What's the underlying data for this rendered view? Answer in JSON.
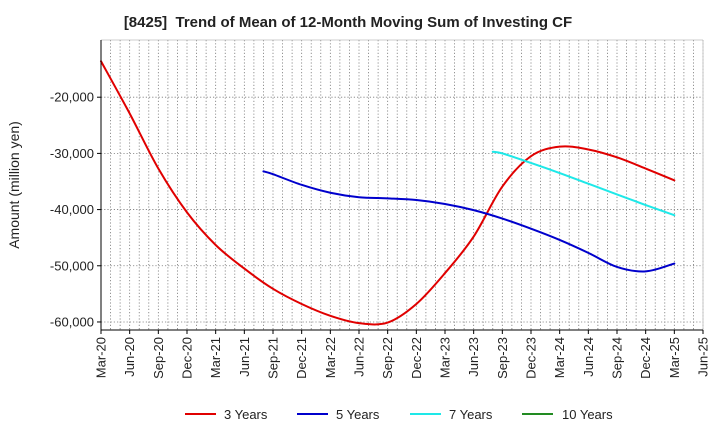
{
  "chart_data": {
    "type": "line",
    "title": "[8425]  Trend of Mean of 12-Month Moving Sum of Investing CF",
    "ylabel": "Amount (million yen)",
    "xlim": [
      "Mar-20",
      "Jun-25"
    ],
    "ylim": [
      -61430,
      -9820
    ],
    "x_ticks": [
      "Mar-20",
      "Jun-20",
      "Sep-20",
      "Dec-20",
      "Mar-21",
      "Jun-21",
      "Sep-21",
      "Dec-21",
      "Mar-22",
      "Jun-22",
      "Sep-22",
      "Dec-22",
      "Mar-23",
      "Jun-23",
      "Sep-23",
      "Dec-23",
      "Mar-24",
      "Jun-24",
      "Sep-24",
      "Dec-24",
      "Mar-25",
      "Jun-25"
    ],
    "y_ticks": [
      -20000,
      -30000,
      -40000,
      -50000,
      -60000
    ],
    "y_tick_labels": [
      "-20,000",
      "-30,000",
      "-40,000",
      "-50,000",
      "-60,000"
    ],
    "grid": true,
    "legend_position": "bottom",
    "series": [
      {
        "name": "3 Years",
        "color": "#e00000",
        "points": [
          [
            "Mar-20",
            -13600
          ],
          [
            "Jun-20",
            -22900
          ],
          [
            "Sep-20",
            -32700
          ],
          [
            "Dec-20",
            -40500
          ],
          [
            "Mar-21",
            -46300
          ],
          [
            "Jun-21",
            -50500
          ],
          [
            "Sep-21",
            -54100
          ],
          [
            "Dec-21",
            -56800
          ],
          [
            "Mar-22",
            -58900
          ],
          [
            "Jun-22",
            -60200
          ],
          [
            "Sep-22",
            -60100
          ],
          [
            "Dec-22",
            -56800
          ],
          [
            "Mar-23",
            -51300
          ],
          [
            "Jun-23",
            -44800
          ],
          [
            "Sep-23",
            -35900
          ],
          [
            "Dec-23",
            -30500
          ],
          [
            "Mar-24",
            -28800
          ],
          [
            "Jun-24",
            -29300
          ],
          [
            "Sep-24",
            -30700
          ],
          [
            "Dec-24",
            -32700
          ],
          [
            "Mar-25",
            -34800
          ]
        ]
      },
      {
        "name": "5 Years",
        "color": "#0000cc",
        "points": [
          [
            "Aug-21",
            -33200
          ],
          [
            "Sep-21",
            -33700
          ],
          [
            "Dec-21",
            -35600
          ],
          [
            "Mar-22",
            -37000
          ],
          [
            "Jun-22",
            -37800
          ],
          [
            "Sep-22",
            -38000
          ],
          [
            "Dec-22",
            -38300
          ],
          [
            "Mar-23",
            -39000
          ],
          [
            "Jun-23",
            -40100
          ],
          [
            "Sep-23",
            -41600
          ],
          [
            "Dec-23",
            -43400
          ],
          [
            "Mar-24",
            -45400
          ],
          [
            "Jun-24",
            -47700
          ],
          [
            "Sep-24",
            -50200
          ],
          [
            "Dec-24",
            -51000
          ],
          [
            "Mar-25",
            -49600
          ]
        ]
      },
      {
        "name": "7 Years",
        "color": "#1ee8e8",
        "points": [
          [
            "Aug-23",
            -29700
          ],
          [
            "Sep-23",
            -30000
          ],
          [
            "Dec-23",
            -31700
          ],
          [
            "Mar-24",
            -33500
          ],
          [
            "Jun-24",
            -35400
          ],
          [
            "Sep-24",
            -37300
          ],
          [
            "Dec-24",
            -39200
          ],
          [
            "Mar-25",
            -41000
          ]
        ]
      },
      {
        "name": "10 Years",
        "color": "#228b22",
        "points": []
      }
    ]
  }
}
